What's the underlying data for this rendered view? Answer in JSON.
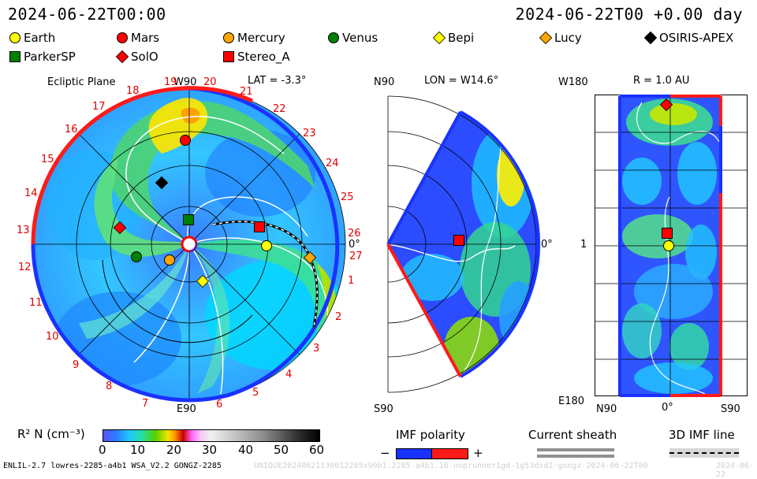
{
  "header": {
    "timestamp_left": "2024-06-22T00:00",
    "timestamp_right": "2024-06-22T00 +0.00 day"
  },
  "legend": [
    {
      "label": "Earth",
      "shape": "circle",
      "color": "#ffff00"
    },
    {
      "label": "Mars",
      "shape": "circle",
      "color": "#ff0000"
    },
    {
      "label": "Mercury",
      "shape": "circle",
      "color": "#ffa500"
    },
    {
      "label": "Venus",
      "shape": "circle",
      "color": "#008000"
    },
    {
      "label": "Bepi",
      "shape": "diamond",
      "color": "#ffff00"
    },
    {
      "label": "Lucy",
      "shape": "diamond",
      "color": "#ffa500"
    },
    {
      "label": "OSIRIS-APEX",
      "shape": "diamond",
      "color": "#000000"
    },
    {
      "label": "ParkerSP",
      "shape": "square",
      "color": "#008000"
    },
    {
      "label": "SolO",
      "shape": "diamond",
      "color": "#ff0000"
    },
    {
      "label": "Stereo_A",
      "shape": "square",
      "color": "#ff0000"
    }
  ],
  "ecliptic": {
    "title": "Ecliptic Plane",
    "top_label": "W90",
    "lat_label": "LAT = -3.3°",
    "right_label": "0°",
    "bottom_label": "E90",
    "carrington_labels": [
      "1",
      "2",
      "3",
      "4",
      "5",
      "6",
      "7",
      "8",
      "9",
      "10",
      "11",
      "12",
      "13",
      "14",
      "15",
      "16",
      "17",
      "18",
      "19",
      "20",
      "21",
      "22",
      "23",
      "24",
      "25",
      "26",
      "27"
    ]
  },
  "meridional": {
    "top_label": "N90",
    "lon_label": "LON = W14.6°",
    "right_label": "0°",
    "bottom_label": "S90"
  },
  "radial": {
    "title": "R = 1.0 AU",
    "top_label": "W180",
    "mid_label": "1",
    "bottom_left_label": "E180",
    "x_left_label": "N90",
    "x_mid_label": "0°",
    "x_right_label": "S90"
  },
  "colorbar": {
    "label": "R² N (cm⁻³)",
    "ticks": [
      "0",
      "10",
      "20",
      "30",
      "40",
      "50",
      "60"
    ]
  },
  "imf_polarity": {
    "title": "IMF polarity",
    "minus": "−",
    "plus": "+"
  },
  "current_sheath": {
    "title": "Current sheath"
  },
  "imf_line": {
    "title": "3D IMF line"
  },
  "footer": {
    "model_info": "ENLIL-2.7 lowres-2285-a4b1 WSA_V2.2 GONGZ-2285",
    "run_info": "UNIQUE20240621130012285x90b1.2285-a4b1.16-noprunner1gd-1g53dsd2-gongz-2024-06-22T00",
    "date_right": "2024-06-22"
  }
}
